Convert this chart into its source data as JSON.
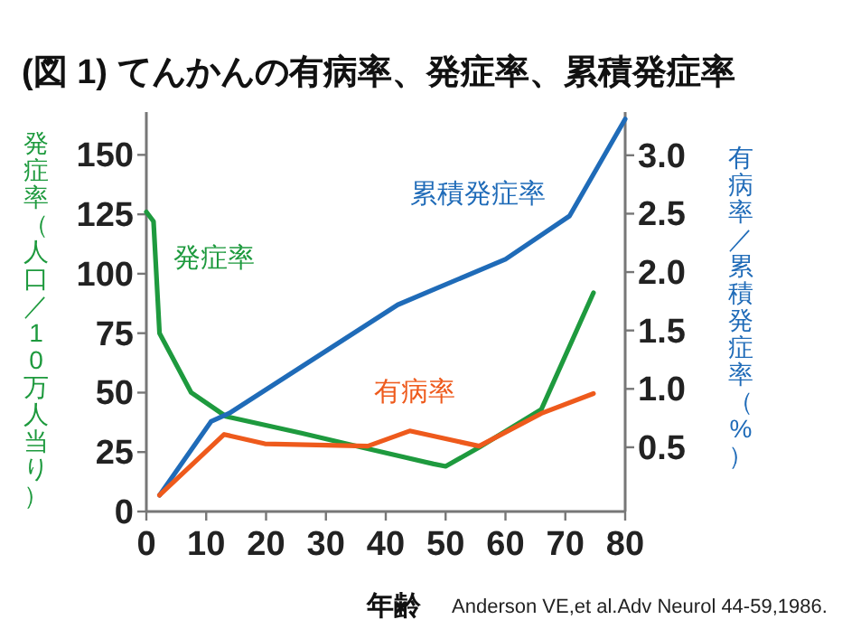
{
  "chart_data": {
    "type": "line",
    "title": "(図 1) てんかんの有病率、発症率、累積発症率",
    "xlabel": "年齢",
    "ylabel": "発症率（人口／10万人当り）",
    "y2label": "有病率／累積発症率（%）",
    "annotations": [
      "Anderson VE,et al.Adv Neurol 44-59,1986."
    ],
    "xlim": [
      0,
      80
    ],
    "xticks": [
      0,
      10,
      20,
      30,
      40,
      50,
      60,
      70,
      80
    ],
    "ylim": [
      0,
      168
    ],
    "yticks": [
      0,
      25,
      50,
      75,
      100,
      125,
      150
    ],
    "y2lim": [
      -0.05,
      3.37
    ],
    "y2ticks": [
      0.5,
      {
        "value": 1,
        "label": "1.0"
      },
      1.5,
      {
        "value": 2,
        "label": "2.0"
      },
      2.5,
      {
        "value": 3,
        "label": "3.0"
      }
    ],
    "grid": false,
    "legend": false,
    "line_style": "solid",
    "marker": "none",
    "series": [
      {
        "name": "発症率",
        "color": "#1e9a3e",
        "x": [
          0,
          1.2,
          2.2,
          7.5,
          13.3,
          25.9,
          36,
          48,
          50,
          55.6,
          66,
          74.7
        ],
        "values": [
          126,
          122,
          75,
          50,
          40,
          33,
          27,
          20,
          19,
          27,
          43,
          92
        ]
      },
      {
        "name": "累積発症率",
        "color": "#1f6bb8",
        "axis": "y2",
        "x": [
          2.2,
          10.8,
          13.8,
          42,
          48,
          60,
          70.7,
          80
        ],
        "values": [
          0.09,
          0.72,
          0.79,
          1.72,
          1.85,
          2.11,
          2.48,
          3.31
        ]
      },
      {
        "name": "有病率",
        "color": "#ee5a1c",
        "axis": "y2",
        "x": [
          2.2,
          13,
          19.8,
          37,
          44,
          55.6,
          66,
          74.7
        ],
        "values": [
          0.09,
          0.61,
          0.53,
          0.51,
          0.64,
          0.51,
          0.79,
          0.96
        ]
      }
    ]
  }
}
